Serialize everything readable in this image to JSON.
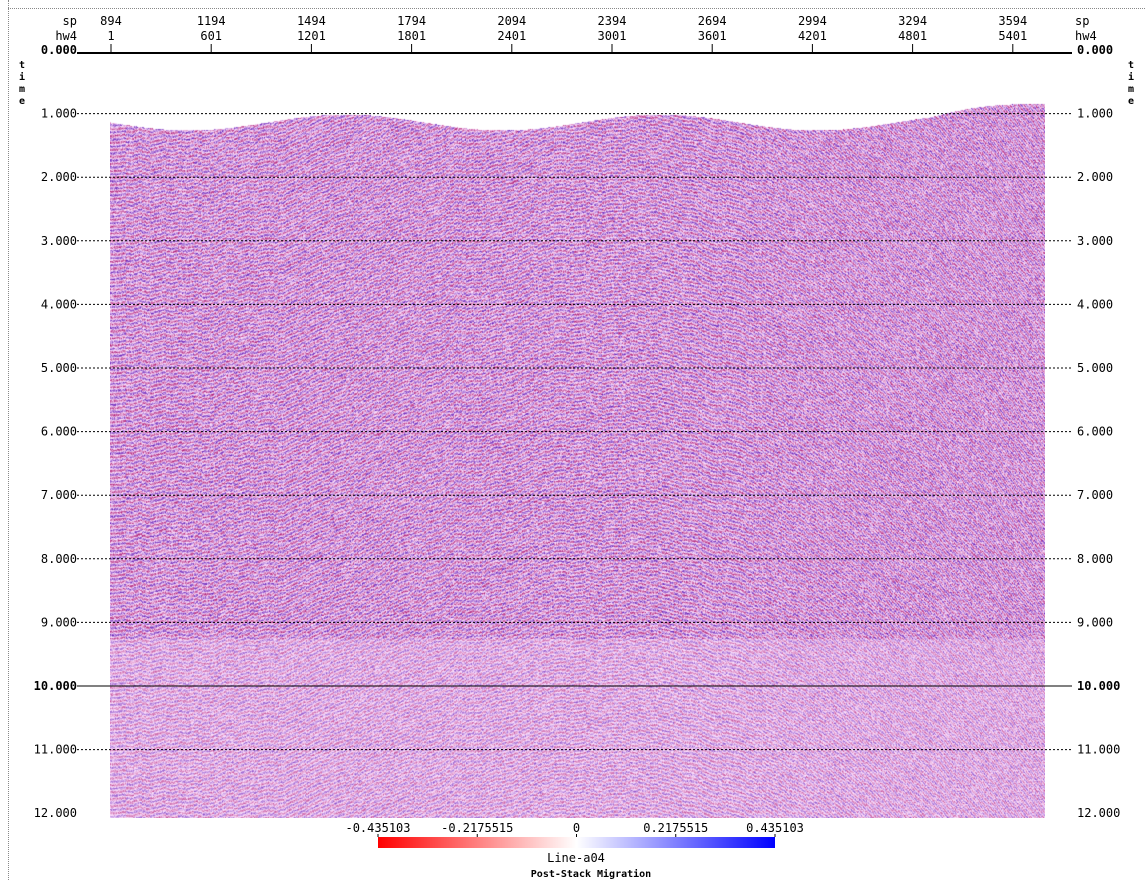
{
  "chart_data": {
    "type": "heatmap",
    "title": "Line-a04",
    "subtitle": "Post-Stack Migration",
    "top_axis": {
      "row1_label": "sp",
      "row2_label": "hw4",
      "sp_ticks": [
        "894",
        "1194",
        "1494",
        "1794",
        "2094",
        "2394",
        "2694",
        "2994",
        "3294",
        "3594"
      ],
      "hw4_ticks": [
        "1",
        "601",
        "1201",
        "1801",
        "2401",
        "3001",
        "3601",
        "4201",
        "4801",
        "5401"
      ]
    },
    "y_axis": {
      "label": "time",
      "ticks": [
        "0.000",
        "1.000",
        "2.000",
        "3.000",
        "4.000",
        "5.000",
        "6.000",
        "7.000",
        "8.000",
        "9.000",
        "10.000",
        "11.000",
        "12.000"
      ],
      "range": [
        0,
        12
      ],
      "bold_ticks": [
        "0.000",
        "10.000"
      ]
    },
    "colorbar": {
      "ticks": [
        "-0.435103",
        "-0.2175515",
        "0",
        "0.2175515",
        "0.435103"
      ],
      "range": [
        -0.435103,
        0.435103
      ],
      "colors": [
        "#ff0000",
        "#ffffff",
        "#0000ff"
      ]
    },
    "colors": {
      "positive": "#0000ff",
      "negative": "#ff0000",
      "mix": "#7a1a6e"
    }
  }
}
